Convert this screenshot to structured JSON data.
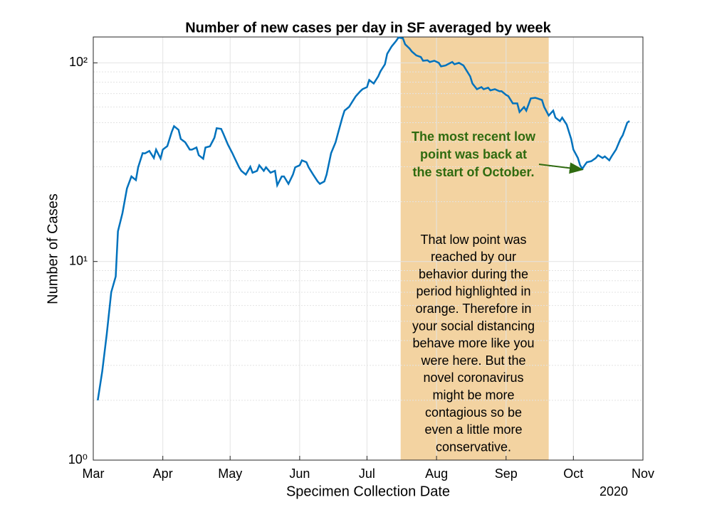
{
  "chart_data": {
    "type": "line",
    "title": "Number of new cases per day in SF averaged by week",
    "xlabel": "Specimen Collection Date",
    "ylabel": "Number of Cases",
    "year_label": "2020",
    "yscale": "log",
    "grid": true,
    "color": "#0072bd",
    "xlim": [
      61,
      306
    ],
    "xticks": [
      {
        "value": 61,
        "label": "Mar"
      },
      {
        "value": 92,
        "label": "Apr"
      },
      {
        "value": 122,
        "label": "May"
      },
      {
        "value": 153,
        "label": "Jun"
      },
      {
        "value": 183,
        "label": "Jul"
      },
      {
        "value": 214,
        "label": "Aug"
      },
      {
        "value": 245,
        "label": "Sep"
      },
      {
        "value": 275,
        "label": "Oct"
      },
      {
        "value": 306,
        "label": "Nov"
      }
    ],
    "ylim": [
      1,
      135
    ],
    "yticks": [
      {
        "value": 1,
        "label": "10⁰"
      },
      {
        "value": 10,
        "label": "10¹"
      },
      {
        "value": 100,
        "label": "10²"
      }
    ],
    "yminorticks": [
      2,
      3,
      4,
      5,
      6,
      7,
      8,
      9,
      20,
      30,
      40,
      50,
      60,
      70,
      80,
      90
    ],
    "highlight": {
      "xlim": [
        198,
        264
      ],
      "color": "#f3d3a1"
    },
    "annotations": [
      {
        "lines": [
          "The most recent low",
          "point was back at",
          "the start of October."
        ],
        "color": "#2f6b10",
        "xy": [
          279,
          29
        ]
      },
      {
        "lines": [
          "That low point was",
          "reached by our",
          "behavior during the",
          "period highlighted in",
          "orange.  Therefore in",
          "your social distancing",
          "behave more like  you",
          "were here.  But the",
          "novel coronavirus",
          "might be more",
          "contagious so be",
          "even a little more",
          "conservative."
        ],
        "color": "#000000"
      }
    ],
    "x": [
      63,
      65,
      67,
      69,
      71,
      72,
      74,
      76,
      78,
      80,
      81,
      83,
      84,
      86,
      88,
      89,
      91,
      92,
      94,
      96,
      97,
      99,
      100,
      102,
      104,
      105,
      107,
      108,
      110,
      111,
      113,
      115,
      116,
      118,
      119,
      121,
      123,
      124,
      126,
      127,
      129,
      131,
      132,
      134,
      135,
      137,
      138,
      140,
      142,
      143,
      145,
      146,
      148,
      150,
      151,
      153,
      154,
      156,
      157,
      159,
      161,
      162,
      164,
      165,
      167,
      169,
      170,
      172,
      173,
      175,
      177,
      178,
      180,
      181,
      183,
      184,
      186,
      188,
      189,
      191,
      192,
      194,
      196,
      197,
      199,
      200,
      202,
      203,
      205,
      207,
      208,
      210,
      211,
      213,
      215,
      216,
      218,
      219,
      221,
      222,
      224,
      226,
      227,
      229,
      230,
      232,
      234,
      235,
      237,
      238,
      240,
      242,
      243,
      245,
      246,
      248,
      250,
      251,
      253,
      254,
      256,
      258,
      259,
      261,
      262,
      264,
      266,
      267,
      269,
      270,
      272,
      274,
      275,
      277,
      278,
      279,
      280,
      281,
      283,
      285,
      286,
      288,
      289,
      291,
      292,
      294,
      296,
      297,
      299,
      300
    ],
    "values": [
      2.0,
      2.8,
      4.3,
      7.0,
      8.4,
      14.2,
      17.5,
      23.3,
      26.8,
      25.7,
      29.8,
      35.1,
      35,
      36,
      33.2,
      36.6,
      33,
      36.6,
      38.1,
      45,
      48,
      46,
      41.4,
      39.8,
      36.6,
      36.6,
      37.5,
      34.3,
      32.9,
      37.5,
      38,
      42,
      46.9,
      46.5,
      43.9,
      38.8,
      35.1,
      33.2,
      29.8,
      28.6,
      27.4,
      30,
      28,
      28.6,
      30.5,
      28.6,
      29.8,
      28,
      28.6,
      24.2,
      26.8,
      26.8,
      24.6,
      27.4,
      29.8,
      30.5,
      32.3,
      31.6,
      29.8,
      27.4,
      25.3,
      24.6,
      25.3,
      27.4,
      35.1,
      39.8,
      43.9,
      53,
      57.5,
      60,
      65.2,
      67.9,
      71.9,
      73.7,
      75.5,
      82,
      78.7,
      85.5,
      90.6,
      98.4,
      111,
      121,
      129,
      134,
      133,
      124,
      118,
      114,
      109,
      107,
      102.5,
      103,
      101,
      102.5,
      100,
      96,
      97,
      98.4,
      101,
      98.4,
      100,
      97,
      93,
      85.5,
      78.7,
      73.7,
      75.5,
      73.7,
      75,
      72.7,
      73.7,
      72,
      72,
      69,
      68,
      62.5,
      62.5,
      56.6,
      59.9,
      57.5,
      66.2,
      66.7,
      66.2,
      65,
      59.9,
      54.3,
      57.5,
      53,
      50.9,
      53,
      48.9,
      41.4,
      36.6,
      33.2,
      30.5,
      29.3,
      30.5,
      31.6,
      32,
      33.2,
      34.3,
      33.2,
      33.8,
      32.3,
      33.8,
      36.6,
      41.4,
      43.2,
      50,
      51
    ]
  }
}
